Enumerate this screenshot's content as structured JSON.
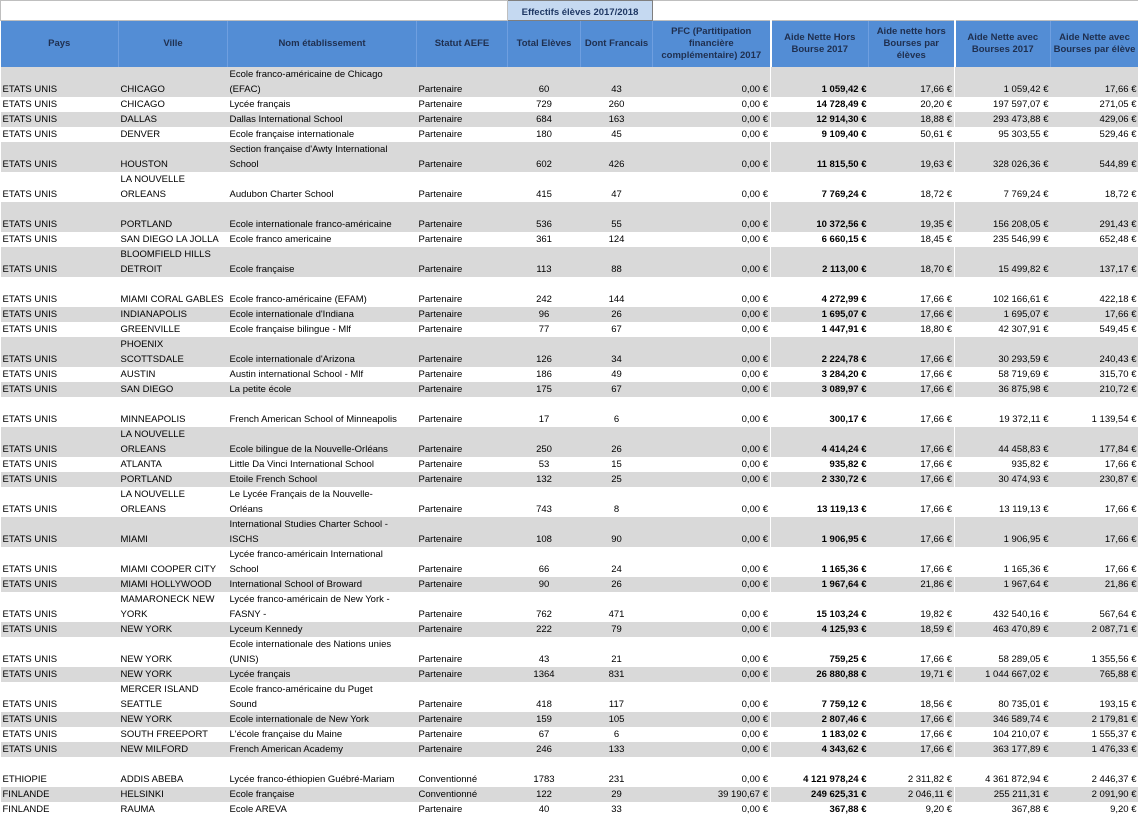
{
  "header": {
    "group": "Effectifs élèves 2017/2018",
    "columns": [
      "Pays",
      "Ville",
      "Nom établissement",
      "Statut AEFE",
      "Total Elèves",
      "Dont Francais",
      "PFC (Partitipation financière complémentaire) 2017",
      "Aide Nette Hors Bourse 2017",
      "Aide nette hors Bourses par élèves",
      "Aide Nette avec Bourses 2017",
      "Aide Nette avec Bourses par élève"
    ]
  },
  "table": {
    "rows": [
      [
        "ETATS UNIS",
        "CHICAGO",
        "Ecole franco-américaine de Chicago\n(EFAC)",
        "Partenaire",
        "60",
        "43",
        "0,00 €",
        "1 059,42 €",
        "17,66 €",
        "1 059,42 €",
        "17,66 €"
      ],
      [
        "ETATS UNIS",
        "CHICAGO",
        "Lycée français",
        "Partenaire",
        "729",
        "260",
        "0,00 €",
        "14 728,49 €",
        "20,20 €",
        "197 597,07 €",
        "271,05 €"
      ],
      [
        "ETATS UNIS",
        "DALLAS",
        "Dallas International School",
        "Partenaire",
        "684",
        "163",
        "0,00 €",
        "12 914,30 €",
        "18,88 €",
        "293 473,88 €",
        "429,06 €"
      ],
      [
        "ETATS UNIS",
        "DENVER",
        "Ecole française internationale",
        "Partenaire",
        "180",
        "45",
        "0,00 €",
        "9 109,40 €",
        "50,61 €",
        "95 303,55 €",
        "529,46 €"
      ],
      [
        "ETATS UNIS",
        "HOUSTON",
        "Section française d'Awty International\nSchool",
        "Partenaire",
        "602",
        "426",
        "0,00 €",
        "11 815,50 €",
        "19,63 €",
        "328 026,36 €",
        "544,89 €"
      ],
      [
        "ETATS UNIS",
        "LA NOUVELLE\nORLEANS",
        "Audubon Charter School",
        "Partenaire",
        "415",
        "47",
        "0,00 €",
        "7 769,24 €",
        "18,72 €",
        "7 769,24 €",
        "18,72 €"
      ],
      [
        "ETATS UNIS",
        "PORTLAND",
        "Ecole internationale franco-américaine",
        "Partenaire",
        "536",
        "55",
        "0,00 €",
        "10 372,56 €",
        "19,35 €",
        "156 208,05 €",
        "291,43 €"
      ],
      [
        "ETATS UNIS",
        "SAN DIEGO  LA JOLLA",
        "Ecole franco americaine",
        "Partenaire",
        "361",
        "124",
        "0,00 €",
        "6 660,15 €",
        "18,45 €",
        "235 546,99 €",
        "652,48 €"
      ],
      [
        "ETATS UNIS",
        "BLOOMFIELD HILLS\nDETROIT",
        "Ecole française",
        "Partenaire",
        "113",
        "88",
        "0,00 €",
        "2 113,00 €",
        "18,70 €",
        "15 499,82 €",
        "137,17 €"
      ],
      [
        "ETATS UNIS",
        "MIAMI  CORAL GABLES",
        "Ecole franco-américaine (EFAM)",
        "Partenaire",
        "242",
        "144",
        "0,00 €",
        "4 272,99 €",
        "17,66 €",
        "102 166,61 €",
        "422,18 €"
      ],
      [
        "ETATS UNIS",
        "INDIANAPOLIS",
        "Ecole internationale d'Indiana",
        "Partenaire",
        "96",
        "26",
        "0,00 €",
        "1 695,07 €",
        "17,66 €",
        "1 695,07 €",
        "17,66 €"
      ],
      [
        "ETATS UNIS",
        "GREENVILLE",
        "Ecole française bilingue - Mlf",
        "Partenaire",
        "77",
        "67",
        "0,00 €",
        "1 447,91 €",
        "18,80 €",
        "42 307,91 €",
        "549,45 €"
      ],
      [
        "ETATS UNIS",
        "PHOENIX\nSCOTTSDALE",
        "Ecole internationale d'Arizona",
        "Partenaire",
        "126",
        "34",
        "0,00 €",
        "2 224,78 €",
        "17,66 €",
        "30 293,59 €",
        "240,43 €"
      ],
      [
        "ETATS UNIS",
        "AUSTIN",
        "Austin international School - Mlf",
        "Partenaire",
        "186",
        "49",
        "0,00 €",
        "3 284,20 €",
        "17,66 €",
        "58 719,69 €",
        "315,70 €"
      ],
      [
        "ETATS UNIS",
        "SAN DIEGO",
        "La petite école",
        "Partenaire",
        "175",
        "67",
        "0,00 €",
        "3 089,97 €",
        "17,66 €",
        "36 875,98 €",
        "210,72 €"
      ],
      [
        "ETATS UNIS",
        "MINNEAPOLIS",
        "French American School of Minneapolis",
        "Partenaire",
        "17",
        "6",
        "0,00 €",
        "300,17 €",
        "17,66 €",
        "19 372,11 €",
        "1 139,54 €"
      ],
      [
        "ETATS UNIS",
        "LA NOUVELLE\nORLEANS",
        "Ecole bilingue de la Nouvelle-Orléans",
        "Partenaire",
        "250",
        "26",
        "0,00 €",
        "4 414,24 €",
        "17,66 €",
        "44 458,83 €",
        "177,84 €"
      ],
      [
        "ETATS UNIS",
        "ATLANTA",
        "Little Da Vinci International School",
        "Partenaire",
        "53",
        "15",
        "0,00 €",
        "935,82 €",
        "17,66 €",
        "935,82 €",
        "17,66 €"
      ],
      [
        "ETATS UNIS",
        "PORTLAND",
        "Etoile French School",
        "Partenaire",
        "132",
        "25",
        "0,00 €",
        "2 330,72 €",
        "17,66 €",
        "30 474,93 €",
        "230,87 €"
      ],
      [
        "ETATS UNIS",
        "LA NOUVELLE\nORLEANS",
        "Le Lycée Français de la Nouvelle-\nOrléans",
        "Partenaire",
        "743",
        "8",
        "0,00 €",
        "13 119,13 €",
        "17,66 €",
        "13 119,13 €",
        "17,66 €"
      ],
      [
        "ETATS UNIS",
        "MIAMI",
        "International Studies Charter School -\nISCHS",
        "Partenaire",
        "108",
        "90",
        "0,00 €",
        "1 906,95 €",
        "17,66 €",
        "1 906,95 €",
        "17,66 €"
      ],
      [
        "ETATS UNIS",
        "MIAMI COOPER CITY",
        "Lycée franco-américain International\nSchool",
        "Partenaire",
        "66",
        "24",
        "0,00 €",
        "1 165,36 €",
        "17,66 €",
        "1 165,36 €",
        "17,66 €"
      ],
      [
        "ETATS UNIS",
        "MIAMI HOLLYWOOD",
        "International School of Broward",
        "Partenaire",
        "90",
        "26",
        "0,00 €",
        "1 967,64 €",
        "21,86 €",
        "1 967,64 €",
        "21,86 €"
      ],
      [
        "ETATS UNIS",
        "MAMARONECK  NEW\nYORK",
        "Lycée franco-américain de New York -\nFASNY -",
        "Partenaire",
        "762",
        "471",
        "0,00 €",
        "15 103,24 €",
        "19,82 €",
        "432 540,16 €",
        "567,64 €"
      ],
      [
        "ETATS UNIS",
        "NEW YORK",
        "Lyceum Kennedy",
        "Partenaire",
        "222",
        "79",
        "0,00 €",
        "4 125,93 €",
        "18,59 €",
        "463 470,89 €",
        "2 087,71 €"
      ],
      [
        "ETATS UNIS",
        "NEW YORK",
        "Ecole internationale des Nations unies\n(UNIS)",
        "Partenaire",
        "43",
        "21",
        "0,00 €",
        "759,25 €",
        "17,66 €",
        "58 289,05 €",
        "1 355,56 €"
      ],
      [
        "ETATS UNIS",
        "NEW YORK",
        "Lycée français",
        "Partenaire",
        "1364",
        "831",
        "0,00 €",
        "26 880,88 €",
        "19,71 €",
        "1 044 667,02 €",
        "765,88 €"
      ],
      [
        "ETATS UNIS",
        "MERCER ISLAND\nSEATTLE",
        "Ecole franco-américaine du Puget\nSound",
        "Partenaire",
        "418",
        "117",
        "0,00 €",
        "7 759,12 €",
        "18,56 €",
        "80 735,01 €",
        "193,15 €"
      ],
      [
        "ETATS UNIS",
        "NEW YORK",
        "Ecole internationale de New York",
        "Partenaire",
        "159",
        "105",
        "0,00 €",
        "2 807,46 €",
        "17,66 €",
        "346 589,74 €",
        "2 179,81 €"
      ],
      [
        "ETATS UNIS",
        "SOUTH FREEPORT",
        "L'école française du Maine",
        "Partenaire",
        "67",
        "6",
        "0,00 €",
        "1 183,02 €",
        "17,66 €",
        "104 210,07 €",
        "1 555,37 €"
      ],
      [
        "ETATS UNIS",
        "NEW MILFORD",
        "French American Academy",
        "Partenaire",
        "246",
        "133",
        "0,00 €",
        "4 343,62 €",
        "17,66 €",
        "363 177,89 €",
        "1 476,33 €"
      ],
      [
        "ETHIOPIE",
        "ADDIS ABEBA",
        "Lycée franco-éthiopien Guébré-Mariam",
        "Conventionné",
        "1783",
        "231",
        "0,00 €",
        "4 121 978,24 €",
        "2 311,82 €",
        "4 361 872,94 €",
        "2 446,37 €"
      ],
      [
        "FINLANDE",
        "HELSINKI",
        "Ecole française",
        "Conventionné",
        "122",
        "29",
        "39 190,67 €",
        "249 625,31 €",
        "2 046,11 €",
        "255 211,31 €",
        "2 091,90 €"
      ],
      [
        "FINLANDE",
        "RAUMA",
        "Ecole AREVA",
        "Partenaire",
        "40",
        "33",
        "0,00 €",
        "367,88 €",
        "9,20 €",
        "367,88 €",
        "9,20 €"
      ]
    ]
  }
}
